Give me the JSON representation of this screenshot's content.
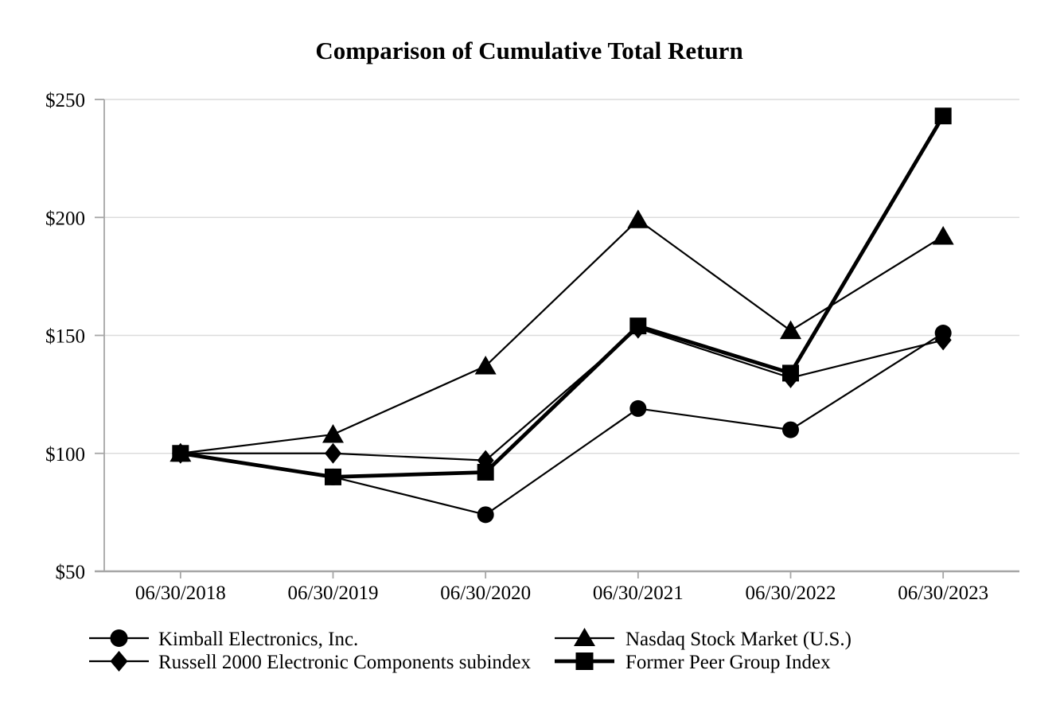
{
  "chart_data": {
    "type": "line",
    "title": "Comparison of Cumulative Total Return",
    "categories": [
      "06/30/2018",
      "06/30/2019",
      "06/30/2020",
      "06/30/2021",
      "06/30/2022",
      "06/30/2023"
    ],
    "series": [
      {
        "name": "Kimball Electronics, Inc.",
        "marker": "circle",
        "values": [
          100,
          90,
          74,
          119,
          110,
          151
        ],
        "emphasis": false
      },
      {
        "name": "Nasdaq Stock Market (U.S.)",
        "marker": "triangle",
        "values": [
          100,
          108,
          137,
          199,
          152,
          192
        ],
        "emphasis": false
      },
      {
        "name": "Russell 2000 Electronic Components subindex",
        "marker": "diamond",
        "values": [
          100,
          100,
          97,
          153,
          132,
          148
        ],
        "emphasis": false
      },
      {
        "name": "Former Peer Group Index",
        "marker": "square",
        "values": [
          100,
          90,
          92,
          154,
          134,
          243
        ],
        "emphasis": true
      }
    ],
    "ylim": [
      50,
      250
    ],
    "ytick_step": 50,
    "yticklabels": [
      "$50",
      "$100",
      "$150",
      "$200",
      "$250"
    ],
    "xlabel": "",
    "ylabel": "",
    "grid": "horizontal",
    "legend_position": "bottom-two-columns",
    "colors": {
      "series": "#000000",
      "grid": "#dcdcdc",
      "axis": "#a6a6a6",
      "background": "#ffffff",
      "text": "#000000"
    }
  }
}
